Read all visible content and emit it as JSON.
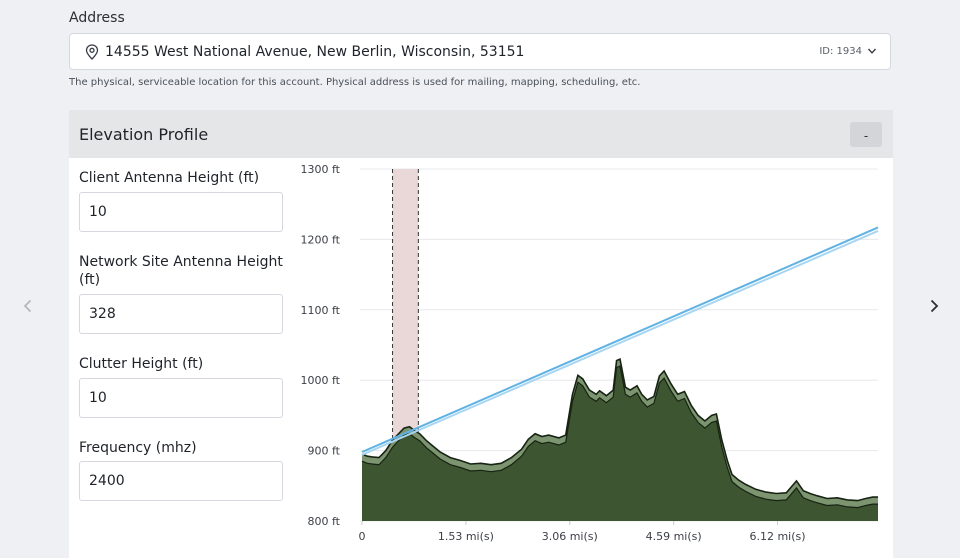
{
  "address": {
    "label": "Address",
    "value": "14555 West National Avenue, New Berlin, Wisconsin, 53151",
    "id": "ID: 1934",
    "help": "The physical, serviceable location for this account. Physical address is used for mailing, mapping, scheduling, etc."
  },
  "icons": {
    "pin": "map-pin-icon",
    "dropdown": "chevron-down-icon",
    "prev": "chevron-left-icon",
    "next": "chevron-right-icon"
  },
  "elevation_panel": {
    "title": "Elevation Profile",
    "collapse_label": "-",
    "fields": [
      {
        "label": "Client Antenna Height (ft)",
        "value": "10"
      },
      {
        "label": "Network Site Antenna Height (ft)",
        "value": "328"
      },
      {
        "label": "Clutter Height (ft)",
        "value": "10"
      },
      {
        "label": "Frequency (mhz)",
        "value": "2400"
      }
    ]
  },
  "chart_data": {
    "type": "area",
    "y_unit": "ft",
    "y_ticks": [
      "800 ft",
      "900 ft",
      "1000 ft",
      "1100 ft",
      "1200 ft",
      "1300 ft"
    ],
    "ylim": [
      800,
      1300
    ],
    "x_ticks": [
      "0",
      "1.53 mi(s)",
      "3.06 mi(s)",
      "4.59 mi(s)",
      "6.12 mi(s)"
    ],
    "x_tick_values": [
      0,
      1.53,
      3.06,
      4.59,
      6.12
    ],
    "xlim": [
      0,
      7.6
    ],
    "grid": true,
    "highlight_range": [
      0.45,
      0.83
    ],
    "line_of_sight": [
      {
        "name": "",
        "x": [
          0,
          7.6
        ],
        "y": [
          898,
          1217
        ],
        "color": "#5fb2e3"
      },
      {
        "name": "",
        "x": [
          0,
          7.6
        ],
        "y": [
          894,
          1212
        ],
        "color": "#a8d6f2"
      }
    ],
    "terrain": {
      "x": [
        0,
        0.08,
        0.15,
        0.25,
        0.35,
        0.45,
        0.55,
        0.62,
        0.7,
        0.78,
        0.85,
        0.95,
        1.05,
        1.15,
        1.3,
        1.45,
        1.6,
        1.75,
        1.9,
        2.05,
        2.2,
        2.35,
        2.45,
        2.55,
        2.65,
        2.75,
        2.9,
        3.0,
        3.1,
        3.18,
        3.25,
        3.35,
        3.45,
        3.5,
        3.6,
        3.7,
        3.75,
        3.8,
        3.88,
        3.95,
        4.05,
        4.12,
        4.2,
        4.3,
        4.38,
        4.45,
        4.55,
        4.65,
        4.75,
        4.85,
        4.95,
        5.05,
        5.15,
        5.22,
        5.3,
        5.38,
        5.45,
        5.55,
        5.65,
        5.8,
        5.95,
        6.1,
        6.25,
        6.4,
        6.5,
        6.6,
        6.7,
        6.85,
        7.0,
        7.15,
        7.3,
        7.42,
        7.52,
        7.6
      ],
      "ground": [
        885,
        882,
        881,
        880,
        890,
        905,
        915,
        922,
        924,
        918,
        914,
        904,
        896,
        888,
        880,
        876,
        871,
        872,
        870,
        872,
        880,
        892,
        906,
        914,
        910,
        912,
        908,
        912,
        970,
        997,
        992,
        976,
        970,
        975,
        968,
        976,
        1018,
        1020,
        980,
        976,
        982,
        970,
        962,
        967,
        996,
        1003,
        985,
        970,
        974,
        954,
        940,
        932,
        940,
        942,
        905,
        876,
        856,
        848,
        842,
        835,
        831,
        829,
        830,
        847,
        833,
        829,
        826,
        822,
        823,
        820,
        819,
        822,
        824,
        824
      ],
      "clutter": [
        895,
        892,
        891,
        890,
        900,
        915,
        925,
        932,
        934,
        928,
        924,
        914,
        906,
        898,
        890,
        886,
        881,
        882,
        880,
        882,
        890,
        902,
        916,
        924,
        920,
        922,
        918,
        922,
        980,
        1007,
        1002,
        986,
        980,
        985,
        978,
        986,
        1028,
        1030,
        990,
        986,
        992,
        980,
        972,
        977,
        1006,
        1013,
        995,
        980,
        984,
        964,
        950,
        942,
        950,
        952,
        915,
        886,
        866,
        858,
        852,
        845,
        841,
        839,
        840,
        857,
        843,
        839,
        836,
        832,
        833,
        830,
        829,
        832,
        834,
        834
      ],
      "ground_color": "#3d5530",
      "clutter_color": "#7d9470",
      "outline_color": "#172313"
    }
  }
}
